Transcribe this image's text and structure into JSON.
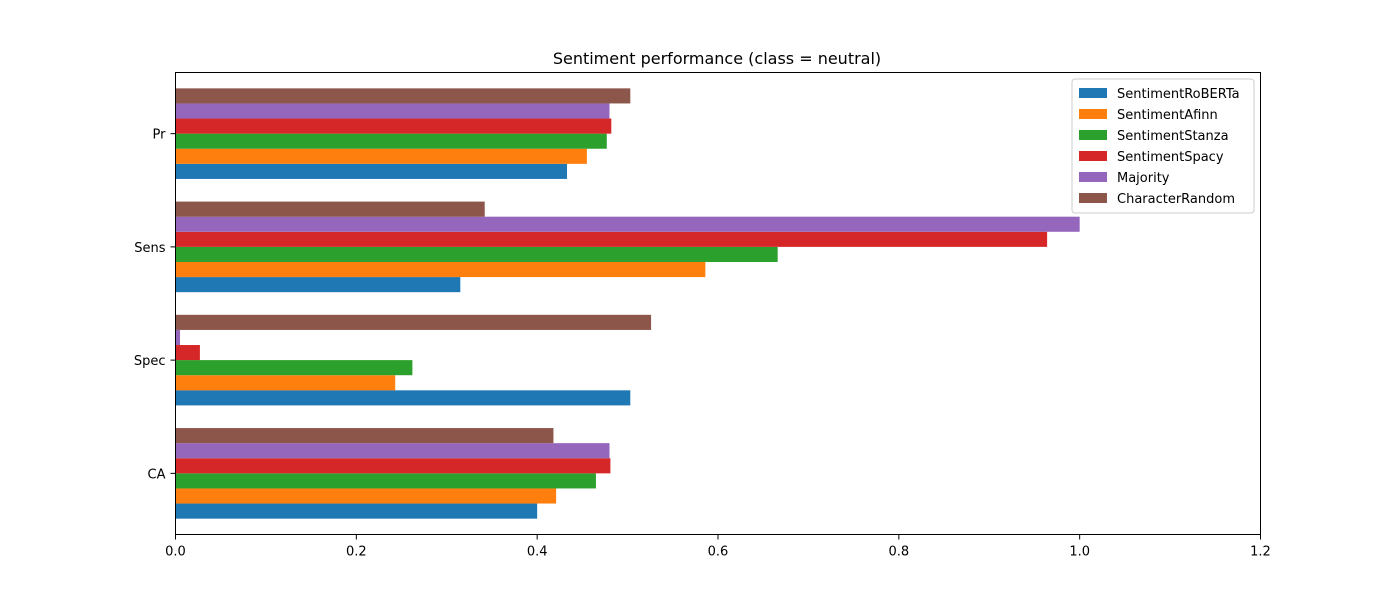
{
  "chart_data": {
    "type": "bar",
    "orientation": "horizontal",
    "title": "Sentiment performance (class = neutral)",
    "xlabel": "",
    "ylabel": "",
    "xlim": [
      0,
      1.2
    ],
    "xticks": [
      "0.0",
      "0.2",
      "0.4",
      "0.6",
      "0.8",
      "1.0",
      "1.2"
    ],
    "categories": [
      "CA",
      "Spec",
      "Sens",
      "Pr"
    ],
    "series": [
      {
        "name": "SentimentRoBERTa",
        "color": "#1f77b4",
        "values": [
          0.4,
          0.503,
          0.315,
          0.433
        ]
      },
      {
        "name": "SentimentAfinn",
        "color": "#ff7f0e",
        "values": [
          0.421,
          0.243,
          0.586,
          0.455
        ]
      },
      {
        "name": "SentimentStanza",
        "color": "#2ca02c",
        "values": [
          0.465,
          0.262,
          0.666,
          0.477
        ]
      },
      {
        "name": "SentimentSpacy",
        "color": "#d62728",
        "values": [
          0.481,
          0.027,
          0.964,
          0.482
        ]
      },
      {
        "name": "Majority",
        "color": "#9467bd",
        "values": [
          0.48,
          0.005,
          1.0,
          0.48
        ]
      },
      {
        "name": "CharacterRandom",
        "color": "#8c564b",
        "values": [
          0.418,
          0.526,
          0.342,
          0.503
        ]
      }
    ],
    "legend_position": "top-right",
    "grid": false
  }
}
